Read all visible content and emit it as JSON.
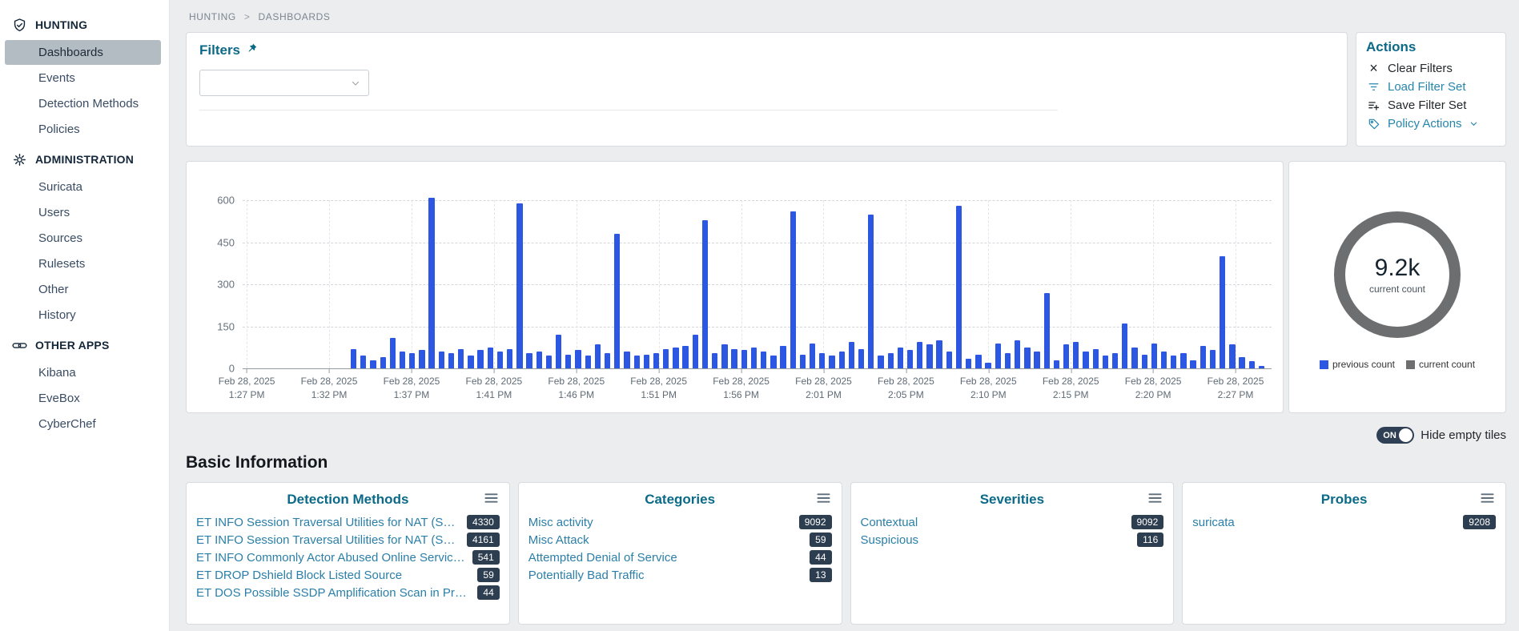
{
  "colors": {
    "accent_title": "#0b6a88",
    "link": "#2b7fa8",
    "action_link": "#2585ad",
    "bar": "#2b57e3",
    "badge_bg": "#2d3e50",
    "ring_gray": "#6d6e70",
    "sidebar_active_bg": "#b4bcc3",
    "toggle_bg": "#2f3f54"
  },
  "sidebar": {
    "sections": [
      {
        "label": "HUNTING",
        "icon": "shield-icon",
        "items": [
          {
            "label": "Dashboards",
            "active": true
          },
          {
            "label": "Events",
            "active": false
          },
          {
            "label": "Detection Methods",
            "active": false
          },
          {
            "label": "Policies",
            "active": false
          }
        ]
      },
      {
        "label": "ADMINISTRATION",
        "icon": "gear-icon",
        "items": [
          {
            "label": "Suricata",
            "active": false
          },
          {
            "label": "Users",
            "active": false
          },
          {
            "label": "Sources",
            "active": false
          },
          {
            "label": "Rulesets",
            "active": false
          },
          {
            "label": "Other",
            "active": false
          },
          {
            "label": "History",
            "active": false
          }
        ]
      },
      {
        "label": "OTHER APPS",
        "icon": "link-icon",
        "items": [
          {
            "label": "Kibana",
            "active": false
          },
          {
            "label": "EveBox",
            "active": false
          },
          {
            "label": "CyberChef",
            "active": false
          }
        ]
      }
    ]
  },
  "breadcrumb": {
    "path": [
      "HUNTING",
      "DASHBOARDS"
    ],
    "separator": ">"
  },
  "filters": {
    "title": "Filters",
    "dropdown": {
      "value": "",
      "placeholder": ""
    }
  },
  "actions": {
    "title": "Actions",
    "items": [
      {
        "label": "Clear Filters",
        "icon": "clear-icon",
        "style": "default",
        "chevron": false
      },
      {
        "label": "Load Filter Set",
        "icon": "filter-icon",
        "style": "link",
        "chevron": false
      },
      {
        "label": "Save Filter Set",
        "icon": "save-filter-icon",
        "style": "default",
        "chevron": false
      },
      {
        "label": "Policy Actions",
        "icon": "tag-icon",
        "style": "link",
        "chevron": true
      }
    ]
  },
  "chart_data": {
    "type": "bar",
    "title": "",
    "xlabel": "",
    "ylabel": "",
    "ylim": [
      0,
      600
    ],
    "yticks": [
      0,
      150,
      300,
      450,
      600
    ],
    "grid": "dashed",
    "legend_position": "none",
    "bar_color": "#2b57e3",
    "start_fraction": 0.105,
    "xticks": [
      {
        "date": "Feb 28, 2025",
        "time": "1:27 PM"
      },
      {
        "date": "Feb 28, 2025",
        "time": "1:32 PM"
      },
      {
        "date": "Feb 28, 2025",
        "time": "1:37 PM"
      },
      {
        "date": "Feb 28, 2025",
        "time": "1:41 PM"
      },
      {
        "date": "Feb 28, 2025",
        "time": "1:46 PM"
      },
      {
        "date": "Feb 28, 2025",
        "time": "1:51 PM"
      },
      {
        "date": "Feb 28, 2025",
        "time": "1:56 PM"
      },
      {
        "date": "Feb 28, 2025",
        "time": "2:01 PM"
      },
      {
        "date": "Feb 28, 2025",
        "time": "2:05 PM"
      },
      {
        "date": "Feb 28, 2025",
        "time": "2:10 PM"
      },
      {
        "date": "Feb 28, 2025",
        "time": "2:15 PM"
      },
      {
        "date": "Feb 28, 2025",
        "time": "2:20 PM"
      },
      {
        "date": "Feb 28, 2025",
        "time": "2:27 PM"
      }
    ],
    "values": [
      70,
      45,
      30,
      40,
      110,
      60,
      55,
      65,
      610,
      60,
      55,
      70,
      45,
      65,
      75,
      60,
      70,
      590,
      55,
      60,
      45,
      120,
      50,
      65,
      45,
      85,
      55,
      480,
      60,
      45,
      50,
      55,
      70,
      75,
      80,
      120,
      530,
      55,
      85,
      70,
      65,
      75,
      60,
      45,
      80,
      560,
      50,
      90,
      55,
      45,
      60,
      95,
      70,
      550,
      45,
      55,
      75,
      65,
      95,
      85,
      100,
      60,
      580,
      35,
      50,
      20,
      90,
      55,
      100,
      75,
      60,
      270,
      30,
      85,
      95,
      60,
      70,
      45,
      55,
      160,
      75,
      50,
      90,
      60,
      45,
      55,
      30,
      80,
      65,
      400,
      85,
      40,
      25,
      10
    ]
  },
  "count_panel": {
    "value": "9.2k",
    "label": "current count",
    "legend": [
      {
        "label": "previous count",
        "color": "#2b57e3"
      },
      {
        "label": "current count",
        "color": "#6d6e70"
      }
    ]
  },
  "tiles_toggle": {
    "state": "ON",
    "label": "Hide empty tiles"
  },
  "basic_information": {
    "title": "Basic Information",
    "tiles": [
      {
        "title": "Detection Methods",
        "rows": [
          {
            "label": "ET INFO Session Traversal Utilities for NAT (ST…",
            "count": "4330"
          },
          {
            "label": "ET INFO Session Traversal Utilities for NAT (ST…",
            "count": "4161"
          },
          {
            "label": "ET INFO Commonly Actor Abused Online Servic…",
            "count": "541"
          },
          {
            "label": "ET DROP Dshield Block Listed Source",
            "count": "59"
          },
          {
            "label": "ET DOS Possible SSDP Amplification Scan in Pro…",
            "count": "44"
          }
        ]
      },
      {
        "title": "Categories",
        "rows": [
          {
            "label": "Misc activity",
            "count": "9092"
          },
          {
            "label": "Misc Attack",
            "count": "59"
          },
          {
            "label": "Attempted Denial of Service",
            "count": "44"
          },
          {
            "label": "Potentially Bad Traffic",
            "count": "13"
          }
        ]
      },
      {
        "title": "Severities",
        "rows": [
          {
            "label": "Contextual",
            "count": "9092"
          },
          {
            "label": "Suspicious",
            "count": "116"
          }
        ]
      },
      {
        "title": "Probes",
        "rows": [
          {
            "label": "suricata",
            "count": "9208"
          }
        ]
      }
    ]
  }
}
